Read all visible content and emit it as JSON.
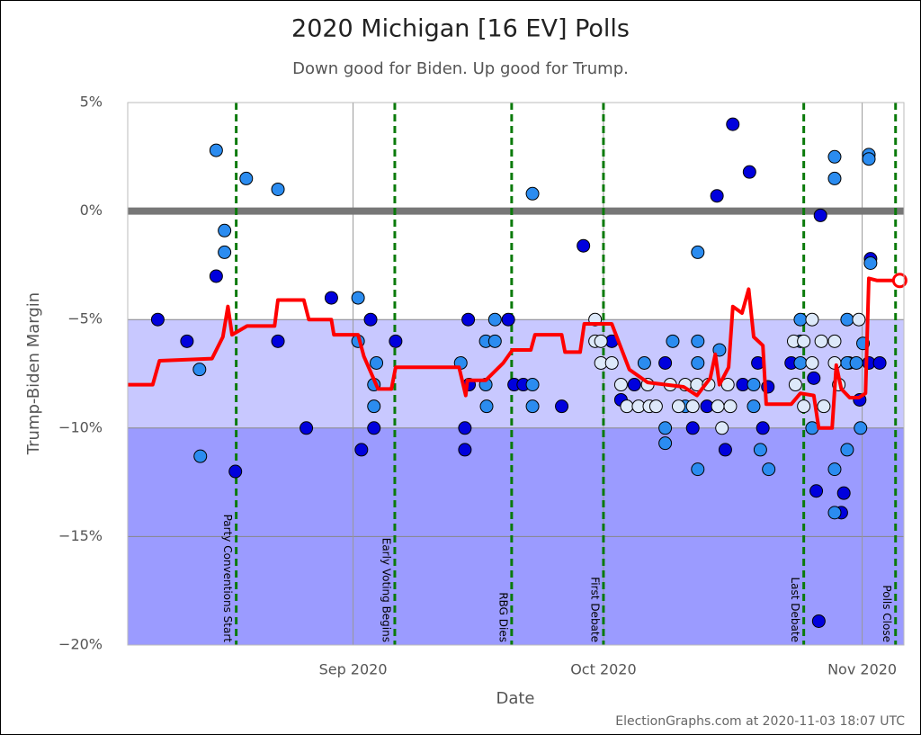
{
  "chart_data": {
    "type": "scatter",
    "title": "2020 Michigan [16 EV] Polls",
    "subtitle": "Down good for Biden. Up good for Trump.",
    "x_label": "Date",
    "y_label": "Trump-Biden Margin",
    "footer": "ElectionGraphs.com at 2020-11-03 18:07 UTC",
    "xlim": [
      218,
      311
    ],
    "ylim": [
      -20,
      5
    ],
    "xticks": [
      {
        "value": 245,
        "label": "Sep 2020"
      },
      {
        "value": 275,
        "label": "Oct 2020"
      },
      {
        "value": 306,
        "label": "Nov 2020"
      }
    ],
    "yticks": [
      {
        "value": 5,
        "label": "5%"
      },
      {
        "value": 0,
        "label": "0%"
      },
      {
        "value": -5,
        "label": "−5%"
      },
      {
        "value": -10,
        "label": "−10%"
      },
      {
        "value": -15,
        "label": "−15%"
      },
      {
        "value": -20,
        "label": "−20%"
      }
    ],
    "grid": true,
    "bands": [
      {
        "from": -5,
        "to": -10,
        "color": "#c8c8ff"
      },
      {
        "from": -10,
        "to": -20,
        "color": "#9b9bff"
      }
    ],
    "events": [
      {
        "x": 231,
        "label": "Party Conventions Start"
      },
      {
        "x": 250,
        "label": "Early Voting Begins"
      },
      {
        "x": 264,
        "label": "RBG Dies"
      },
      {
        "x": 275,
        "label": "First Debate"
      },
      {
        "x": 299,
        "label": "Last Debate"
      },
      {
        "x": 310,
        "label": "Polls Close"
      }
    ],
    "series": [
      {
        "type": "scatter",
        "color": "#0000dd",
        "x": [
          221.6,
          225.1,
          228.6,
          230.9,
          236.0,
          239.4,
          242.4,
          246.0,
          247.1,
          247.5,
          250.1,
          258.4,
          258.4,
          258.8,
          258.9,
          263.6,
          264.3,
          265.4,
          270.0,
          272.6,
          276.0,
          277.1,
          278.7,
          282.4,
          285.7,
          287.4,
          288.6,
          289.6,
          290.5,
          291.7,
          292.5,
          293.5,
          294.1,
          294.7,
          297.5,
          300.2,
          300.5,
          300.8,
          301.0,
          303.5,
          303.8,
          304.4,
          305.7,
          306.8,
          307.0,
          308.1
        ],
        "values": [
          -5.0,
          -6.0,
          -3.0,
          -12.0,
          -6.0,
          -10.0,
          -4.0,
          -11.0,
          -5.0,
          -10.0,
          -6.0,
          -10.0,
          -11.0,
          -5.0,
          -8.0,
          -5.0,
          -8.0,
          -8.0,
          -9.0,
          -1.6,
          -6.0,
          -8.7,
          -8.0,
          -7.0,
          -10.0,
          -9.0,
          0.7,
          -11.0,
          4.0,
          -8.0,
          1.8,
          -7.0,
          -10.0,
          -8.1,
          -7.0,
          -7.7,
          -12.9,
          -18.9,
          -0.2,
          -13.9,
          -13.0,
          -7.0,
          -8.7,
          -7.0,
          -2.2,
          -7.0
        ]
      },
      {
        "type": "scatter",
        "color": "#2b8cf0",
        "x": [
          226.6,
          226.7,
          228.6,
          229.6,
          229.6,
          232.2,
          236.0,
          245.6,
          245.6,
          247.8,
          247.5,
          247.5,
          257.9,
          260.9,
          261.0,
          260.9,
          262.0,
          262.0,
          266.5,
          266.5,
          266.5,
          279.9,
          282.4,
          282.4,
          283.3,
          284.8,
          286.3,
          286.3,
          286.3,
          286.3,
          288.9,
          293.0,
          293.0,
          293.8,
          294.8,
          298.6,
          298.6,
          298.6,
          300.0,
          302.7,
          302.7,
          302.7,
          302.7,
          304.2,
          304.2,
          304.2,
          305.3,
          305.8,
          306.1,
          306.8,
          306.8,
          307.0
        ],
        "values": [
          -7.3,
          -11.3,
          2.8,
          -0.9,
          -1.9,
          1.5,
          1.0,
          -4.0,
          -6.0,
          -7.0,
          -8.0,
          -9.0,
          -7.0,
          -8.0,
          -9.0,
          -6.0,
          -5.0,
          -6.0,
          0.8,
          -8.0,
          -9.0,
          -7.0,
          -10.0,
          -10.7,
          -6.0,
          -9.0,
          -1.9,
          -6.0,
          -7.0,
          -11.9,
          -6.4,
          -8.0,
          -9.0,
          -11.0,
          -11.9,
          -5.0,
          -6.0,
          -7.0,
          -10.0,
          2.5,
          1.5,
          -11.9,
          -13.9,
          -5.0,
          -7.0,
          -11.0,
          -7.0,
          -10.0,
          -6.1,
          2.6,
          2.4,
          -2.4
        ]
      },
      {
        "type": "scatter",
        "color": "#dde9fa",
        "x": [
          274.0,
          274.0,
          274.7,
          274.7,
          276.0,
          277.1,
          277.8,
          279.2,
          280.3,
          280.5,
          281.3,
          283.0,
          284.0,
          284.8,
          285.7,
          286.2,
          287.6,
          288.7,
          289.2,
          289.9,
          290.2,
          297.8,
          298.0,
          299.0,
          299.0,
          300.0,
          300.0,
          301.1,
          301.4,
          302.7,
          302.7,
          303.2,
          305.6
        ],
        "values": [
          -5.0,
          -6.0,
          -6.0,
          -7.0,
          -7.0,
          -8.0,
          -9.0,
          -9.0,
          -8.0,
          -9.0,
          -9.0,
          -8.0,
          -9.0,
          -8.0,
          -9.0,
          -8.0,
          -8.0,
          -9.0,
          -10.0,
          -8.0,
          -9.0,
          -6.0,
          -8.0,
          -9.0,
          -6.0,
          -5.0,
          -7.0,
          -6.0,
          -9.0,
          -6.0,
          -7.0,
          -8.0,
          -5.0
        ]
      },
      {
        "type": "line",
        "color": "#ff0000",
        "x": [
          218.0,
          221.0,
          221.8,
          228.1,
          229.4,
          230.0,
          230.5,
          232.3,
          235.6,
          236.0,
          239.1,
          239.7,
          242.4,
          242.7,
          245.6,
          246.3,
          248.0,
          249.6,
          250.1,
          257.7,
          258.5,
          258.7,
          260.9,
          263.0,
          264.1,
          266.3,
          266.8,
          270.0,
          270.4,
          272.2,
          272.7,
          276.0,
          278.1,
          280.3,
          284.6,
          286.2,
          287.8,
          288.4,
          288.9,
          290.0,
          290.5,
          291.6,
          292.4,
          293.0,
          294.1,
          294.5,
          297.5,
          298.6,
          300.2,
          300.8,
          302.4,
          302.9,
          303.5,
          304.5,
          305.6,
          306.4,
          306.8,
          307.8,
          310.5
        ],
        "values": [
          -8.0,
          -8.0,
          -6.9,
          -6.8,
          -5.8,
          -4.4,
          -5.7,
          -5.3,
          -5.3,
          -4.1,
          -4.1,
          -5.0,
          -5.0,
          -5.7,
          -5.7,
          -6.7,
          -8.2,
          -8.2,
          -7.2,
          -7.2,
          -8.5,
          -7.8,
          -7.8,
          -7.0,
          -6.4,
          -6.4,
          -5.7,
          -5.7,
          -6.5,
          -6.5,
          -5.2,
          -5.2,
          -7.3,
          -7.9,
          -8.1,
          -8.5,
          -7.7,
          -6.6,
          -8.0,
          -7.2,
          -4.4,
          -4.7,
          -3.6,
          -5.8,
          -6.2,
          -8.9,
          -8.9,
          -8.4,
          -8.5,
          -10.0,
          -10.0,
          -7.1,
          -8.2,
          -8.6,
          -8.6,
          -8.4,
          -3.1,
          -3.2,
          -3.2
        ]
      }
    ]
  }
}
